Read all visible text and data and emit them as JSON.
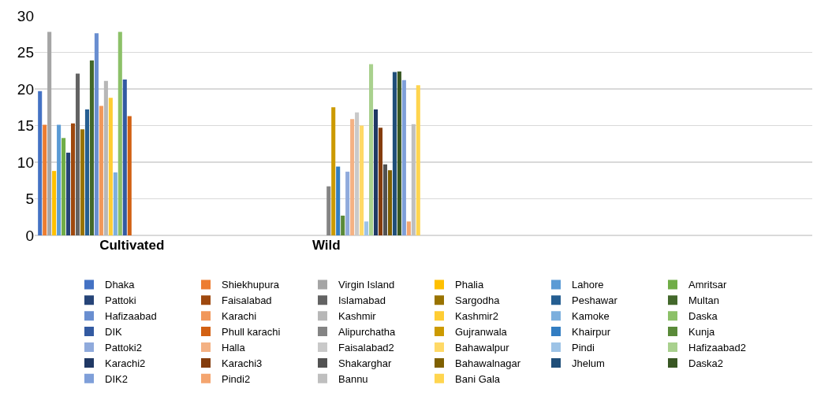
{
  "chart_data": {
    "type": "bar",
    "categories": [
      "Cultivated",
      "Wild",
      null,
      null
    ],
    "ylim": [
      0,
      30
    ],
    "yticks": [
      0,
      5,
      10,
      15,
      20,
      25,
      30
    ],
    "grid": "y",
    "legend": "bottom",
    "series": [
      {
        "name": "Dhaka",
        "color": "#4472c4",
        "values": [
          19.7,
          null,
          null,
          null
        ]
      },
      {
        "name": "Shiekhupura",
        "color": "#ed7d31",
        "values": [
          15.1,
          null,
          null,
          null
        ]
      },
      {
        "name": "Virgin Island",
        "color": "#a5a5a5",
        "values": [
          27.8,
          null,
          null,
          null
        ]
      },
      {
        "name": "Phalia",
        "color": "#ffc000",
        "values": [
          8.8,
          null,
          null,
          null
        ]
      },
      {
        "name": "Lahore",
        "color": "#5b9bd5",
        "values": [
          15.1,
          null,
          null,
          null
        ]
      },
      {
        "name": "Amritsar",
        "color": "#70ad47",
        "values": [
          13.3,
          null,
          null,
          null
        ]
      },
      {
        "name": "Pattoki",
        "color": "#264478",
        "values": [
          11.3,
          null,
          null,
          null
        ]
      },
      {
        "name": "Faisalabad",
        "color": "#9e480e",
        "values": [
          15.3,
          null,
          null,
          null
        ]
      },
      {
        "name": "Islamabad",
        "color": "#636363",
        "values": [
          22.1,
          null,
          null,
          null
        ]
      },
      {
        "name": "Sargodha",
        "color": "#997300",
        "values": [
          14.5,
          null,
          null,
          null
        ]
      },
      {
        "name": "Peshawar",
        "color": "#255e91",
        "values": [
          17.2,
          null,
          null,
          null
        ]
      },
      {
        "name": "Multan",
        "color": "#43682b",
        "values": [
          23.9,
          null,
          null,
          null
        ]
      },
      {
        "name": "Hafizaabad",
        "color": "#698ed0",
        "values": [
          27.6,
          null,
          null,
          null
        ]
      },
      {
        "name": "Karachi",
        "color": "#f1975a",
        "values": [
          17.7,
          null,
          null,
          null
        ]
      },
      {
        "name": "Kashmir",
        "color": "#b7b7b7",
        "values": [
          21.1,
          null,
          null,
          null
        ]
      },
      {
        "name": "Kashmir2",
        "color": "#ffcd33",
        "values": [
          18.8,
          null,
          null,
          null
        ]
      },
      {
        "name": "Kamoke",
        "color": "#7cafdd",
        "values": [
          8.6,
          null,
          null,
          null
        ]
      },
      {
        "name": "Daska",
        "color": "#8cc168",
        "values": [
          27.8,
          null,
          null,
          null
        ]
      },
      {
        "name": "DIK",
        "color": "#335aa1",
        "values": [
          21.3,
          null,
          null,
          null
        ]
      },
      {
        "name": "Phull karachi",
        "color": "#d26012",
        "values": [
          16.3,
          null,
          null,
          null
        ]
      },
      {
        "name": "Alipurchatha",
        "color": "#848484",
        "values": [
          null,
          6.7,
          null,
          null
        ]
      },
      {
        "name": "Gujranwala",
        "color": "#cc9a00",
        "values": [
          null,
          17.5,
          null,
          null
        ]
      },
      {
        "name": "Khairpur",
        "color": "#327dc2",
        "values": [
          null,
          9.4,
          null,
          null
        ]
      },
      {
        "name": "Kunja",
        "color": "#5a8a39",
        "values": [
          null,
          2.7,
          null,
          null
        ]
      },
      {
        "name": "Pattoki2",
        "color": "#8faadc",
        "values": [
          null,
          8.7,
          null,
          null
        ]
      },
      {
        "name": "Halla",
        "color": "#f4b183",
        "values": [
          null,
          15.9,
          null,
          null
        ]
      },
      {
        "name": "Faisalabad2",
        "color": "#c9c9c9",
        "values": [
          null,
          16.8,
          null,
          null
        ]
      },
      {
        "name": "Bahawalpur",
        "color": "#ffd966",
        "values": [
          null,
          15.0,
          null,
          null
        ]
      },
      {
        "name": "Pindi",
        "color": "#9dc3e6",
        "values": [
          null,
          1.9,
          null,
          null
        ]
      },
      {
        "name": "Hafizaabad2",
        "color": "#a9d18e",
        "values": [
          null,
          23.4,
          null,
          null
        ]
      },
      {
        "name": "Karachi2",
        "color": "#203864",
        "values": [
          null,
          17.2,
          null,
          null
        ]
      },
      {
        "name": "Karachi3",
        "color": "#843c0c",
        "values": [
          null,
          14.7,
          null,
          null
        ]
      },
      {
        "name": "Shakarghar",
        "color": "#525252",
        "values": [
          null,
          9.7,
          null,
          null
        ]
      },
      {
        "name": "Bahawalnagar",
        "color": "#7f6000",
        "values": [
          null,
          8.9,
          null,
          null
        ]
      },
      {
        "name": "Jhelum",
        "color": "#1f4e79",
        "values": [
          null,
          22.3,
          null,
          null
        ]
      },
      {
        "name": "Daska2",
        "color": "#385723",
        "values": [
          null,
          22.4,
          null,
          null
        ]
      },
      {
        "name": "DIK2",
        "color": "#7f9fd9",
        "values": [
          null,
          21.2,
          null,
          null
        ]
      },
      {
        "name": "Pindi2",
        "color": "#f4a56f",
        "values": [
          null,
          1.9,
          null,
          null
        ]
      },
      {
        "name": "Bannu",
        "color": "#bfbfbf",
        "values": [
          null,
          15.2,
          null,
          null
        ]
      },
      {
        "name": "Bani Gala",
        "color": "#ffd54f",
        "values": [
          null,
          20.5,
          null,
          null
        ]
      }
    ]
  }
}
